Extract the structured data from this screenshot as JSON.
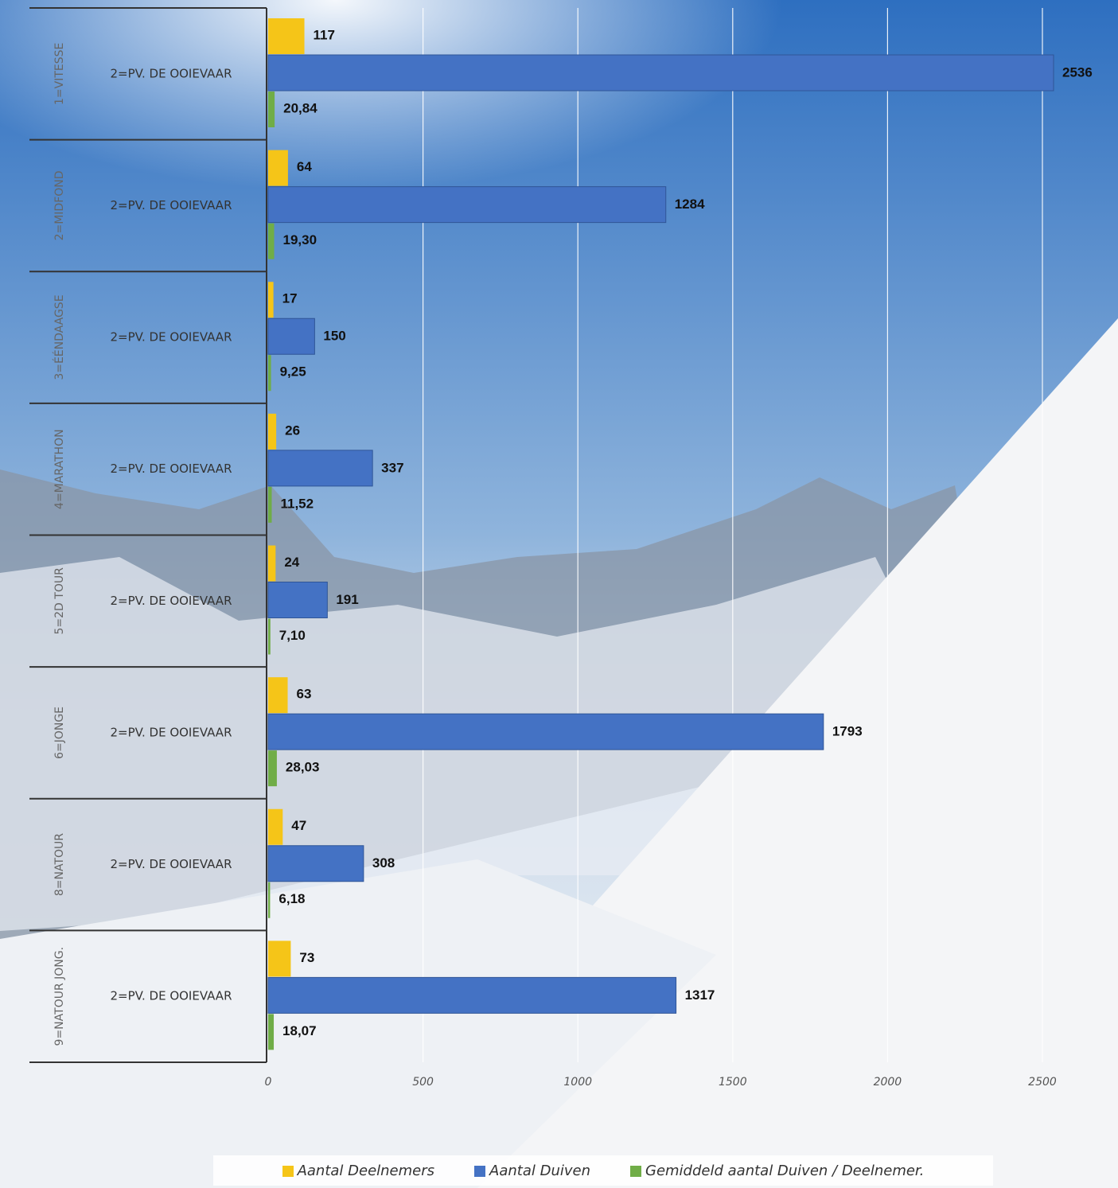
{
  "chart_data": {
    "type": "bar",
    "orientation": "horizontal",
    "categories": [
      "2=PV. DE OOIEVAAR",
      "2=PV. DE OOIEVAAR",
      "2=PV. DE OOIEVAAR",
      "2=PV. DE OOIEVAAR",
      "2=PV. DE OOIEVAAR",
      "2=PV. DE OOIEVAAR",
      "2=PV. DE OOIEVAAR",
      "2=PV. DE OOIEVAAR"
    ],
    "groups": [
      "1=VITESSE",
      "2=MIDFOND",
      "3=ÉÉNDAAGSE",
      "4=MARATHON",
      "5=2D TOUR",
      "6=JONGE",
      "8=NATOUR",
      "9=NATOUR JONG."
    ],
    "series": [
      {
        "name": "Aantal Deelnemers",
        "color": "#f5c518",
        "values": [
          117,
          64,
          17,
          26,
          24,
          63,
          47,
          73
        ]
      },
      {
        "name": "Aantal Duiven",
        "color": "#4472c4",
        "values": [
          2536,
          1284,
          150,
          337,
          191,
          1793,
          308,
          1317
        ]
      },
      {
        "name": "Gemiddeld aantal Duiven / Deelnemer.",
        "color": "#70ad47",
        "values": [
          20.84,
          19.3,
          9.25,
          11.52,
          7.1,
          28.03,
          6.18,
          18.07
        ],
        "value_labels": [
          "20,84",
          "19,30",
          "9,25",
          "11,52",
          "7,10",
          "28,03",
          "6,18",
          "18,07"
        ]
      }
    ],
    "xlim": [
      0,
      2500
    ],
    "xticks": [
      0,
      500,
      1000,
      1500,
      2000,
      2500
    ],
    "grid": true,
    "legend": "bottom"
  }
}
